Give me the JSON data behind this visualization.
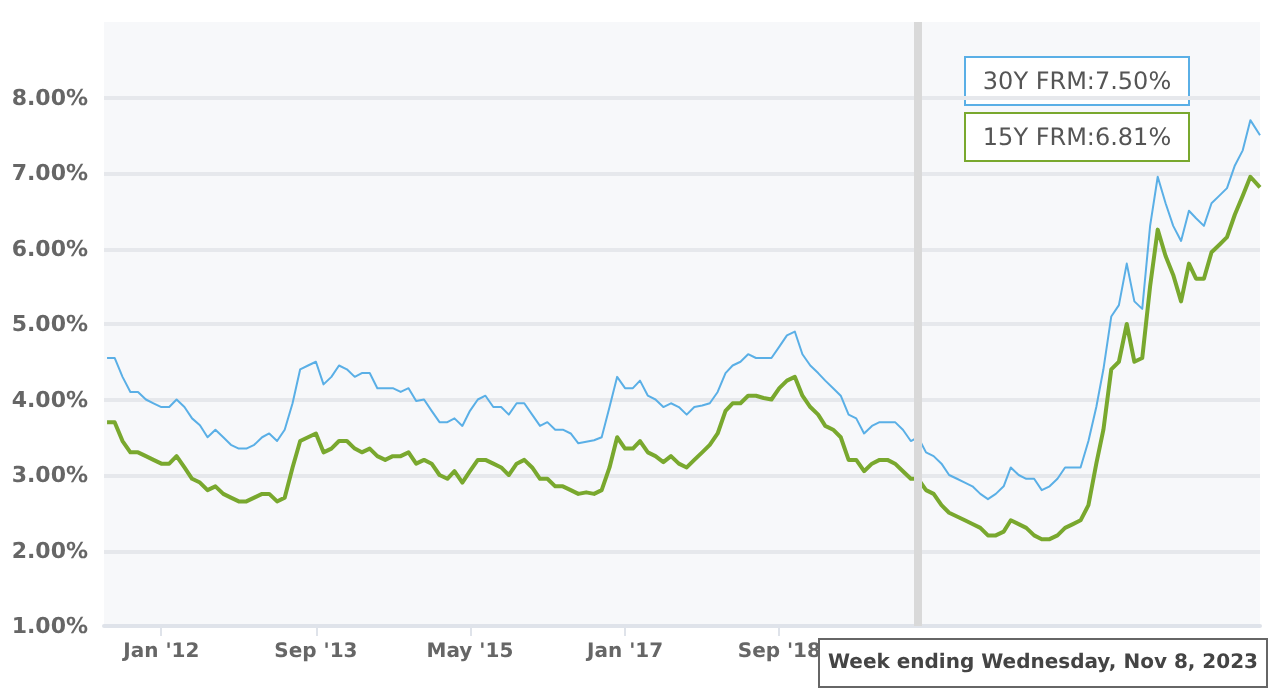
{
  "chart_data": {
    "type": "line",
    "x": [
      "2011-06",
      "2011-07",
      "2011-08",
      "2011-09",
      "2011-10",
      "2011-11",
      "2011-12",
      "2012-01",
      "2012-02",
      "2012-03",
      "2012-04",
      "2012-05",
      "2012-06",
      "2012-07",
      "2012-08",
      "2012-09",
      "2012-10",
      "2012-11",
      "2012-12",
      "2013-01",
      "2013-02",
      "2013-03",
      "2013-04",
      "2013-05",
      "2013-06",
      "2013-07",
      "2013-08",
      "2013-09",
      "2013-10",
      "2013-11",
      "2013-12",
      "2014-01",
      "2014-02",
      "2014-03",
      "2014-04",
      "2014-05",
      "2014-06",
      "2014-07",
      "2014-08",
      "2014-09",
      "2014-10",
      "2014-11",
      "2014-12",
      "2015-01",
      "2015-02",
      "2015-03",
      "2015-04",
      "2015-05",
      "2015-06",
      "2015-07",
      "2015-08",
      "2015-09",
      "2015-10",
      "2015-11",
      "2015-12",
      "2016-01",
      "2016-02",
      "2016-03",
      "2016-04",
      "2016-05",
      "2016-06",
      "2016-07",
      "2016-08",
      "2016-09",
      "2016-10",
      "2016-11",
      "2016-12",
      "2017-01",
      "2017-02",
      "2017-03",
      "2017-04",
      "2017-05",
      "2017-06",
      "2017-07",
      "2017-08",
      "2017-09",
      "2017-10",
      "2017-11",
      "2017-12",
      "2018-01",
      "2018-02",
      "2018-03",
      "2018-04",
      "2018-05",
      "2018-06",
      "2018-07",
      "2018-08",
      "2018-09",
      "2018-10",
      "2018-11",
      "2018-12",
      "2019-01",
      "2019-02",
      "2019-03",
      "2019-04",
      "2019-05",
      "2019-06",
      "2019-07",
      "2019-08",
      "2019-09",
      "2019-10",
      "2019-11",
      "2019-12",
      "2020-01",
      "2020-02",
      "2020-03",
      "2020-04",
      "2020-05",
      "2020-06",
      "2020-07",
      "2020-08",
      "2020-09",
      "2020-10",
      "2020-11",
      "2020-12",
      "2021-01",
      "2021-02",
      "2021-03",
      "2021-04",
      "2021-05",
      "2021-06",
      "2021-07",
      "2021-08",
      "2021-09",
      "2021-10",
      "2021-11",
      "2021-12",
      "2022-01",
      "2022-02",
      "2022-03",
      "2022-04",
      "2022-05",
      "2022-06",
      "2022-07",
      "2022-08",
      "2022-09",
      "2022-10",
      "2022-11",
      "2022-12",
      "2023-01",
      "2023-02",
      "2023-03",
      "2023-04",
      "2023-05",
      "2023-06",
      "2023-07",
      "2023-08",
      "2023-09",
      "2023-10",
      "2023-11-08"
    ],
    "series": [
      {
        "color": "#5aafe6",
        "values": [
          4.55,
          4.55,
          4.3,
          4.1,
          4.1,
          4.0,
          3.95,
          3.9,
          3.9,
          4.0,
          3.9,
          3.75,
          3.66,
          3.5,
          3.6,
          3.5,
          3.4,
          3.35,
          3.35,
          3.4,
          3.5,
          3.55,
          3.45,
          3.6,
          3.95,
          4.4,
          4.45,
          4.5,
          4.2,
          4.3,
          4.45,
          4.4,
          4.3,
          4.35,
          4.35,
          4.15,
          4.15,
          4.15,
          4.1,
          4.15,
          3.98,
          4.0,
          3.85,
          3.7,
          3.7,
          3.75,
          3.65,
          3.85,
          4.0,
          4.05,
          3.9,
          3.9,
          3.8,
          3.95,
          3.95,
          3.8,
          3.65,
          3.7,
          3.6,
          3.6,
          3.55,
          3.42,
          3.44,
          3.46,
          3.5,
          3.9,
          4.3,
          4.15,
          4.15,
          4.25,
          4.05,
          4.0,
          3.9,
          3.95,
          3.9,
          3.8,
          3.9,
          3.92,
          3.95,
          4.1,
          4.35,
          4.45,
          4.5,
          4.6,
          4.55,
          4.55,
          4.55,
          4.7,
          4.85,
          4.9,
          4.6,
          4.45,
          4.35,
          4.25,
          4.15,
          4.05,
          3.8,
          3.75,
          3.55,
          3.65,
          3.7,
          3.7,
          3.7,
          3.6,
          3.45,
          3.5,
          3.3,
          3.25,
          3.15,
          3.0,
          2.95,
          2.9,
          2.85,
          2.75,
          2.68,
          2.75,
          2.85,
          3.1,
          3.0,
          2.95,
          2.95,
          2.8,
          2.85,
          2.95,
          3.1,
          3.1,
          3.1,
          3.45,
          3.9,
          4.4,
          5.1,
          5.25,
          5.8,
          5.3,
          5.2,
          6.3,
          6.95,
          6.6,
          6.3,
          6.1,
          6.5,
          6.4,
          6.3,
          6.6,
          6.7,
          6.8,
          7.1,
          7.3,
          7.7,
          7.5
        ]
      },
      {
        "color": "#79a82e",
        "values": [
          3.7,
          3.7,
          3.45,
          3.3,
          3.3,
          3.25,
          3.2,
          3.15,
          3.15,
          3.25,
          3.1,
          2.95,
          2.9,
          2.8,
          2.85,
          2.75,
          2.7,
          2.65,
          2.65,
          2.7,
          2.75,
          2.75,
          2.65,
          2.7,
          3.1,
          3.45,
          3.5,
          3.55,
          3.3,
          3.35,
          3.45,
          3.45,
          3.35,
          3.3,
          3.35,
          3.25,
          3.2,
          3.25,
          3.25,
          3.3,
          3.15,
          3.2,
          3.15,
          3.0,
          2.95,
          3.05,
          2.9,
          3.05,
          3.2,
          3.2,
          3.15,
          3.1,
          3.0,
          3.15,
          3.2,
          3.1,
          2.95,
          2.95,
          2.85,
          2.85,
          2.8,
          2.75,
          2.77,
          2.75,
          2.8,
          3.1,
          3.5,
          3.35,
          3.35,
          3.45,
          3.3,
          3.25,
          3.17,
          3.25,
          3.15,
          3.1,
          3.2,
          3.3,
          3.4,
          3.55,
          3.85,
          3.95,
          3.95,
          4.05,
          4.05,
          4.02,
          4.0,
          4.15,
          4.25,
          4.3,
          4.05,
          3.9,
          3.8,
          3.65,
          3.6,
          3.5,
          3.2,
          3.2,
          3.05,
          3.15,
          3.2,
          3.2,
          3.15,
          3.05,
          2.95,
          2.95,
          2.8,
          2.75,
          2.6,
          2.5,
          2.45,
          2.4,
          2.35,
          2.3,
          2.2,
          2.2,
          2.25,
          2.4,
          2.35,
          2.3,
          2.2,
          2.15,
          2.15,
          2.2,
          2.3,
          2.35,
          2.4,
          2.6,
          3.15,
          3.6,
          4.4,
          4.5,
          5.0,
          4.5,
          4.55,
          5.5,
          6.25,
          5.9,
          5.65,
          5.3,
          5.8,
          5.6,
          5.6,
          5.95,
          6.05,
          6.15,
          6.45,
          6.7,
          6.95,
          6.81
        ]
      }
    ],
    "xlim": [
      "2011-05-20",
      "2023-11-08"
    ],
    "xticks": [
      {
        "value": "2012-01-01",
        "label": "Jan '12"
      },
      {
        "value": "2013-09-01",
        "label": "Sep '13"
      },
      {
        "value": "2015-05-01",
        "label": "May '15"
      },
      {
        "value": "2017-01-01",
        "label": "Jan '17"
      },
      {
        "value": "2018-09-01",
        "label": "Sep '18"
      }
    ],
    "ylim": [
      1,
      9
    ],
    "yticks": [
      {
        "value": 1,
        "label": "1.00%"
      },
      {
        "value": 2,
        "label": "2.00%"
      },
      {
        "value": 3,
        "label": "3.00%"
      },
      {
        "value": 4,
        "label": "4.00%"
      },
      {
        "value": 5,
        "label": "5.00%"
      },
      {
        "value": 6,
        "label": "6.00%"
      },
      {
        "value": 7,
        "label": "7.00%"
      },
      {
        "value": 8,
        "label": "8.00%"
      }
    ],
    "grid": "y",
    "marker": "none",
    "line_style": "solid",
    "ref_lines": [
      {
        "axis": "x",
        "value": "2020-03-01",
        "color": "#d9d9d9"
      }
    ],
    "annotations": [
      "30Y FRM:7.50%",
      "15Y FRM:6.81%",
      "Week ending Wednesday, Nov 8, 2023"
    ]
  }
}
